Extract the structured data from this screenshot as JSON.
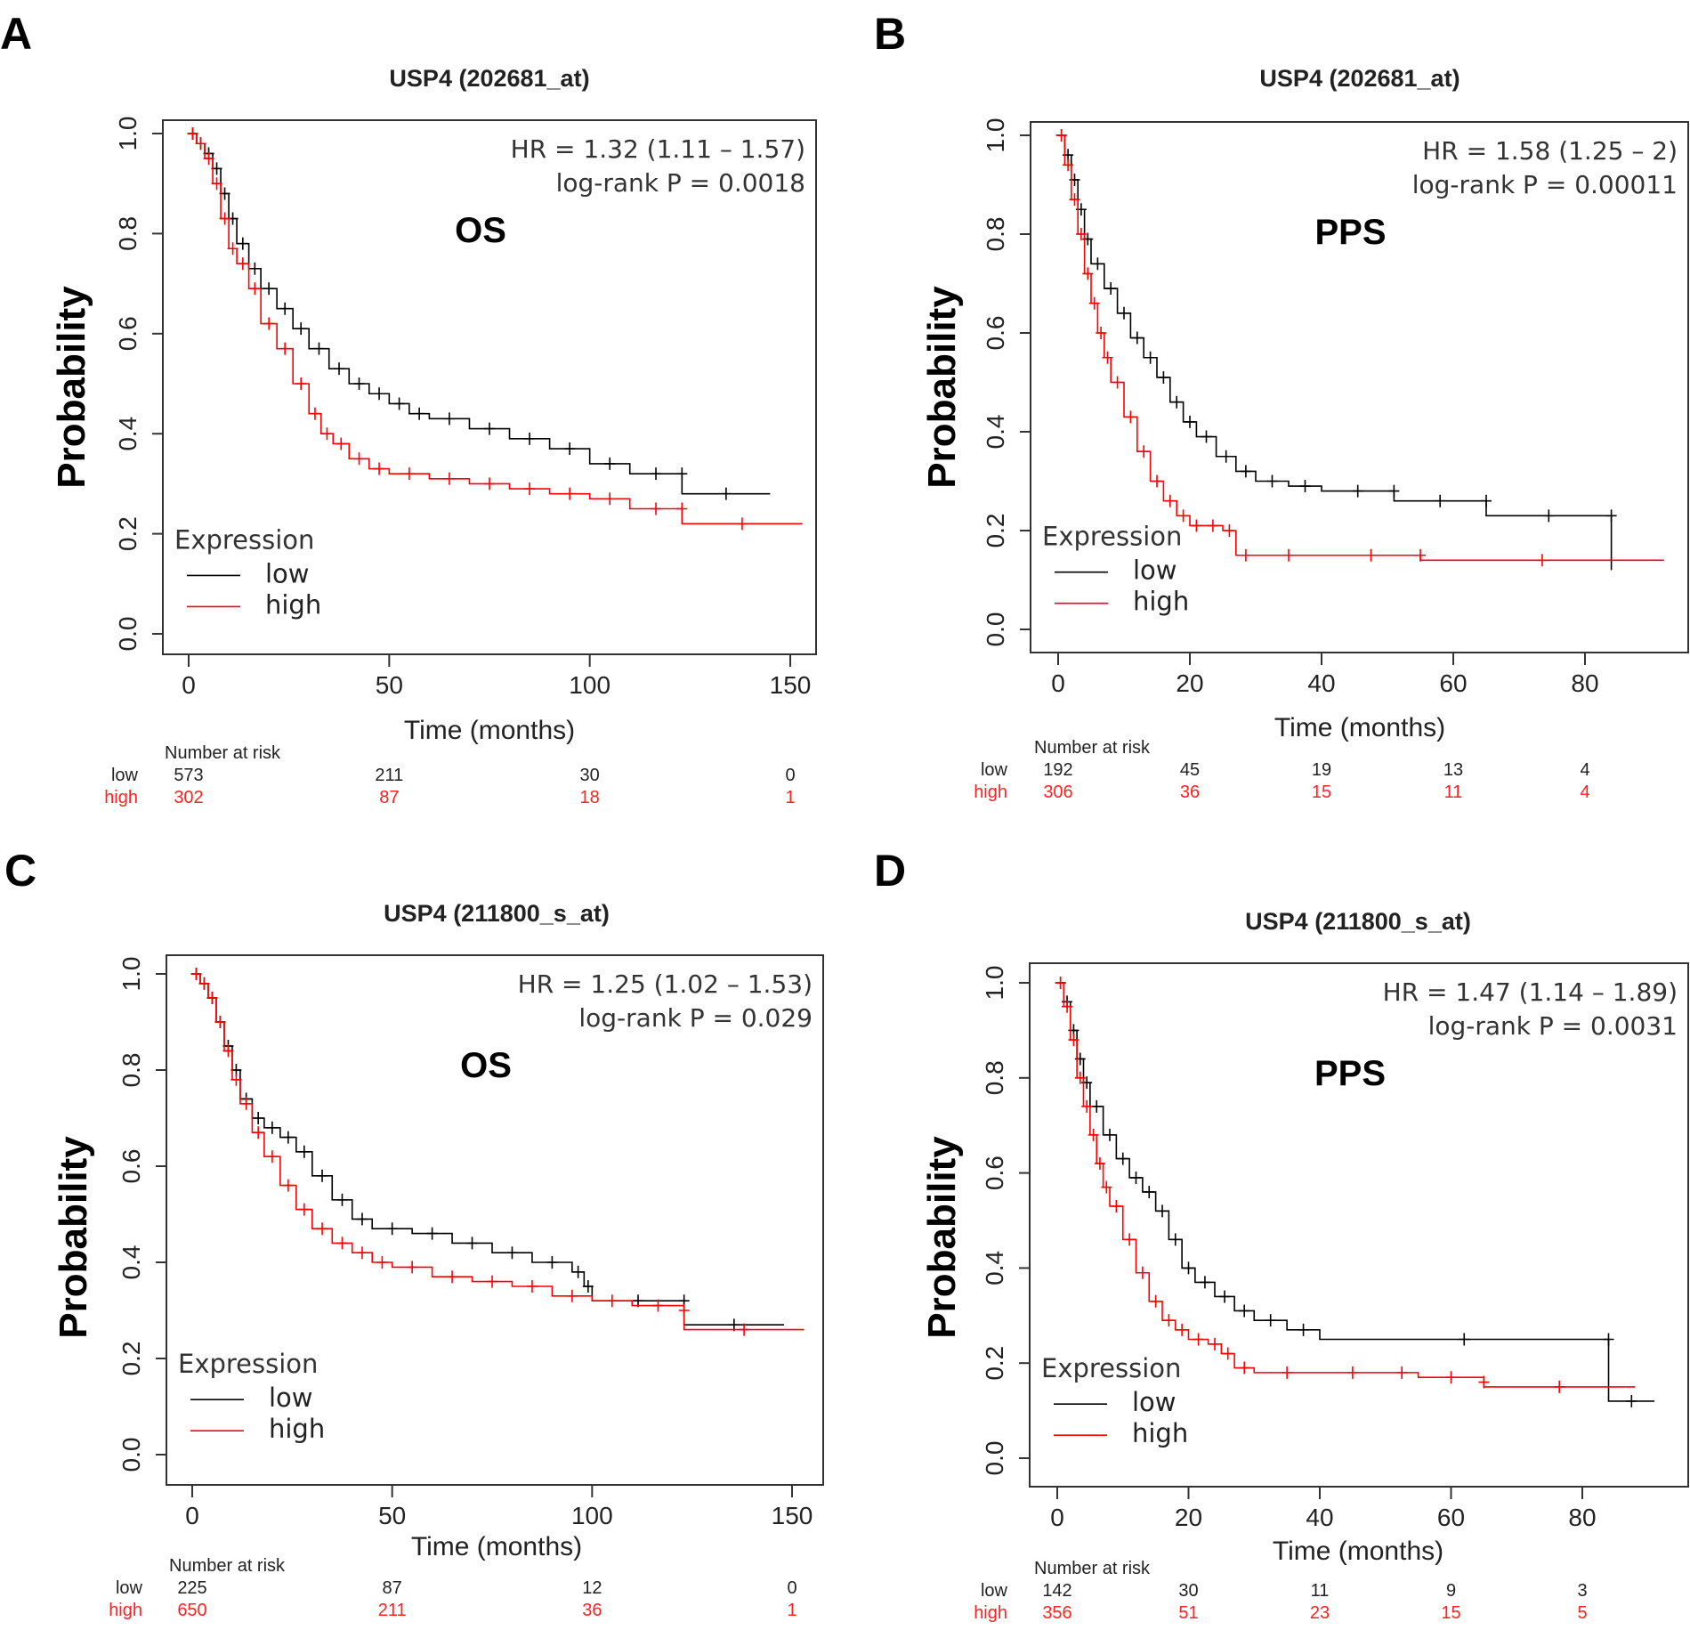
{
  "figure": {
    "colors": {
      "low": "#000000",
      "high": "#ff0000",
      "axis": "#333333"
    }
  },
  "chart_data": [
    {
      "type": "line",
      "panel_label": "A",
      "title": "USP4 (202681_at)",
      "endpoint": "OS",
      "xlabel": "Time (months)",
      "ylabel": "Probability",
      "xlim": [
        0,
        155
      ],
      "ylim": [
        0,
        1.0
      ],
      "x_ticks": [
        0,
        50,
        100,
        150
      ],
      "y_ticks": [
        "0.0",
        "0.2",
        "0.4",
        "0.6",
        "0.8",
        "1.0"
      ],
      "hr_text": "HR = 1.32 (1.11 – 1.57)",
      "p_text": "log-rank  P = 0.0018",
      "legend": {
        "title": "Expression",
        "position": "bottom-left",
        "entries": [
          "low",
          "high"
        ]
      },
      "series": [
        {
          "name": "low",
          "x": [
            0,
            2,
            4,
            6,
            8,
            10,
            12,
            15,
            18,
            22,
            26,
            30,
            35,
            40,
            45,
            50,
            55,
            60,
            70,
            80,
            90,
            100,
            110,
            123,
            123,
            145
          ],
          "y": [
            1.0,
            0.98,
            0.96,
            0.93,
            0.88,
            0.83,
            0.78,
            0.73,
            0.69,
            0.65,
            0.61,
            0.57,
            0.53,
            0.5,
            0.48,
            0.46,
            0.44,
            0.43,
            0.41,
            0.39,
            0.37,
            0.34,
            0.32,
            0.32,
            0.28,
            0.28
          ]
        },
        {
          "name": "high",
          "x": [
            0,
            2,
            4,
            6,
            8,
            10,
            12,
            15,
            18,
            22,
            26,
            30,
            33,
            36,
            40,
            45,
            50,
            60,
            70,
            80,
            90,
            100,
            110,
            123,
            123,
            153
          ],
          "y": [
            1.0,
            0.98,
            0.95,
            0.9,
            0.83,
            0.77,
            0.74,
            0.69,
            0.62,
            0.57,
            0.5,
            0.44,
            0.4,
            0.38,
            0.35,
            0.33,
            0.32,
            0.31,
            0.3,
            0.29,
            0.28,
            0.27,
            0.25,
            0.25,
            0.22,
            0.22
          ]
        }
      ],
      "risk_table": {
        "header": "Number at risk",
        "times": [
          0,
          50,
          100,
          150
        ],
        "low": [
          "573",
          "211",
          "30",
          "0"
        ],
        "high": [
          "302",
          "87",
          "18",
          "1"
        ]
      }
    },
    {
      "type": "line",
      "panel_label": "B",
      "title": "USP4 (202681_at)",
      "endpoint": "PPS",
      "xlabel": "Time (months)",
      "ylabel": "Probability",
      "xlim": [
        0,
        92
      ],
      "ylim": [
        0,
        1.0
      ],
      "x_ticks": [
        0,
        20,
        40,
        60,
        80
      ],
      "y_ticks": [
        "0.0",
        "0.2",
        "0.4",
        "0.6",
        "0.8",
        "1.0"
      ],
      "hr_text": "HR = 1.58 (1.25 – 2)",
      "p_text": "log-rank  P = 0.00011",
      "legend": {
        "title": "Expression",
        "position": "bottom-left",
        "entries": [
          "low",
          "high"
        ]
      },
      "series": [
        {
          "name": "low",
          "x": [
            0,
            1,
            2,
            3,
            4,
            5,
            7,
            9,
            11,
            13,
            15,
            17,
            19,
            21,
            24,
            27,
            30,
            35,
            40,
            51,
            51,
            65,
            65,
            84,
            84
          ],
          "y": [
            1.0,
            0.96,
            0.91,
            0.85,
            0.79,
            0.74,
            0.69,
            0.64,
            0.59,
            0.55,
            0.51,
            0.46,
            0.42,
            0.39,
            0.35,
            0.32,
            0.3,
            0.29,
            0.28,
            0.28,
            0.26,
            0.26,
            0.23,
            0.23,
            0.12
          ]
        },
        {
          "name": "high",
          "x": [
            0,
            1,
            2,
            3,
            4,
            5,
            6,
            7,
            8,
            10,
            12,
            14,
            16,
            18,
            20,
            22,
            25,
            27,
            30,
            40,
            55,
            55,
            92
          ],
          "y": [
            1.0,
            0.94,
            0.87,
            0.8,
            0.72,
            0.66,
            0.6,
            0.55,
            0.5,
            0.43,
            0.36,
            0.3,
            0.26,
            0.23,
            0.21,
            0.21,
            0.2,
            0.15,
            0.15,
            0.15,
            0.15,
            0.14,
            0.14
          ]
        }
      ],
      "risk_table": {
        "header": "Number at risk",
        "times": [
          0,
          20,
          40,
          60,
          80
        ],
        "low": [
          "192",
          "45",
          "19",
          "13",
          "4"
        ],
        "high": [
          "306",
          "36",
          "15",
          "11",
          "4"
        ]
      }
    },
    {
      "type": "line",
      "panel_label": "C",
      "title": "USP4 (211800_s_at)",
      "endpoint": "OS",
      "xlabel": "Time (months)",
      "ylabel": "Probability",
      "xlim": [
        0,
        155
      ],
      "ylim": [
        0,
        1.0
      ],
      "x_ticks": [
        0,
        50,
        100,
        150
      ],
      "y_ticks": [
        "0.0",
        "0.2",
        "0.4",
        "0.6",
        "0.8",
        "1.0"
      ],
      "hr_text": "HR = 1.25 (1.02 – 1.53)",
      "p_text": "log-rank  P = 0.029",
      "legend": {
        "title": "Expression",
        "position": "bottom-left",
        "entries": [
          "low",
          "high"
        ]
      },
      "series": [
        {
          "name": "low",
          "x": [
            0,
            2,
            4,
            6,
            8,
            10,
            12,
            15,
            18,
            22,
            26,
            30,
            35,
            40,
            45,
            55,
            65,
            75,
            85,
            95,
            98,
            100,
            123,
            123,
            148
          ],
          "y": [
            1.0,
            0.98,
            0.95,
            0.9,
            0.85,
            0.8,
            0.74,
            0.7,
            0.68,
            0.66,
            0.63,
            0.58,
            0.53,
            0.49,
            0.47,
            0.46,
            0.44,
            0.42,
            0.4,
            0.38,
            0.35,
            0.32,
            0.32,
            0.27,
            0.27
          ]
        },
        {
          "name": "high",
          "x": [
            0,
            2,
            4,
            6,
            8,
            10,
            12,
            15,
            18,
            22,
            26,
            30,
            35,
            40,
            45,
            50,
            60,
            70,
            80,
            90,
            100,
            110,
            123,
            123,
            153
          ],
          "y": [
            1.0,
            0.98,
            0.95,
            0.9,
            0.84,
            0.78,
            0.73,
            0.67,
            0.62,
            0.56,
            0.51,
            0.47,
            0.44,
            0.42,
            0.4,
            0.39,
            0.37,
            0.36,
            0.35,
            0.33,
            0.32,
            0.31,
            0.3,
            0.26,
            0.26
          ]
        }
      ],
      "risk_table": {
        "header": "Number at risk",
        "times": [
          0,
          50,
          100,
          150
        ],
        "low": [
          "225",
          "87",
          "12",
          "0"
        ],
        "high": [
          "650",
          "211",
          "36",
          "1"
        ]
      }
    },
    {
      "type": "line",
      "panel_label": "D",
      "title": "USP4 (211800_s_at)",
      "endpoint": "PPS",
      "xlabel": "Time (months)",
      "ylabel": "Probability",
      "xlim": [
        0,
        92
      ],
      "ylim": [
        0,
        1.0
      ],
      "x_ticks": [
        0,
        20,
        40,
        60,
        80
      ],
      "y_ticks": [
        "0.0",
        "0.2",
        "0.4",
        "0.6",
        "0.8",
        "1.0"
      ],
      "hr_text": "HR = 1.47 (1.14 – 1.89)",
      "p_text": "log-rank  P = 0.0031",
      "legend": {
        "title": "Expression",
        "position": "bottom-left",
        "entries": [
          "low",
          "high"
        ]
      },
      "series": [
        {
          "name": "low",
          "x": [
            0,
            1,
            2,
            3,
            4,
            5,
            7,
            9,
            11,
            13,
            15,
            17,
            19,
            21,
            24,
            27,
            30,
            35,
            40,
            84,
            84,
            91
          ],
          "y": [
            1.0,
            0.96,
            0.9,
            0.84,
            0.79,
            0.74,
            0.68,
            0.63,
            0.59,
            0.56,
            0.52,
            0.46,
            0.4,
            0.37,
            0.34,
            0.31,
            0.29,
            0.27,
            0.25,
            0.25,
            0.12,
            0.12
          ]
        },
        {
          "name": "high",
          "x": [
            0,
            1,
            2,
            3,
            4,
            5,
            6,
            7,
            8,
            10,
            12,
            14,
            16,
            18,
            20,
            23,
            25,
            27,
            30,
            40,
            50,
            55,
            65,
            65,
            88
          ],
          "y": [
            1.0,
            0.95,
            0.88,
            0.8,
            0.74,
            0.68,
            0.62,
            0.57,
            0.53,
            0.46,
            0.39,
            0.33,
            0.29,
            0.27,
            0.25,
            0.24,
            0.22,
            0.19,
            0.18,
            0.18,
            0.18,
            0.17,
            0.16,
            0.15,
            0.15
          ]
        }
      ],
      "risk_table": {
        "header": "Number at risk",
        "times": [
          0,
          20,
          40,
          60,
          80
        ],
        "low": [
          "142",
          "30",
          "11",
          "9",
          "3"
        ],
        "high": [
          "356",
          "51",
          "23",
          "15",
          "5"
        ]
      }
    }
  ]
}
